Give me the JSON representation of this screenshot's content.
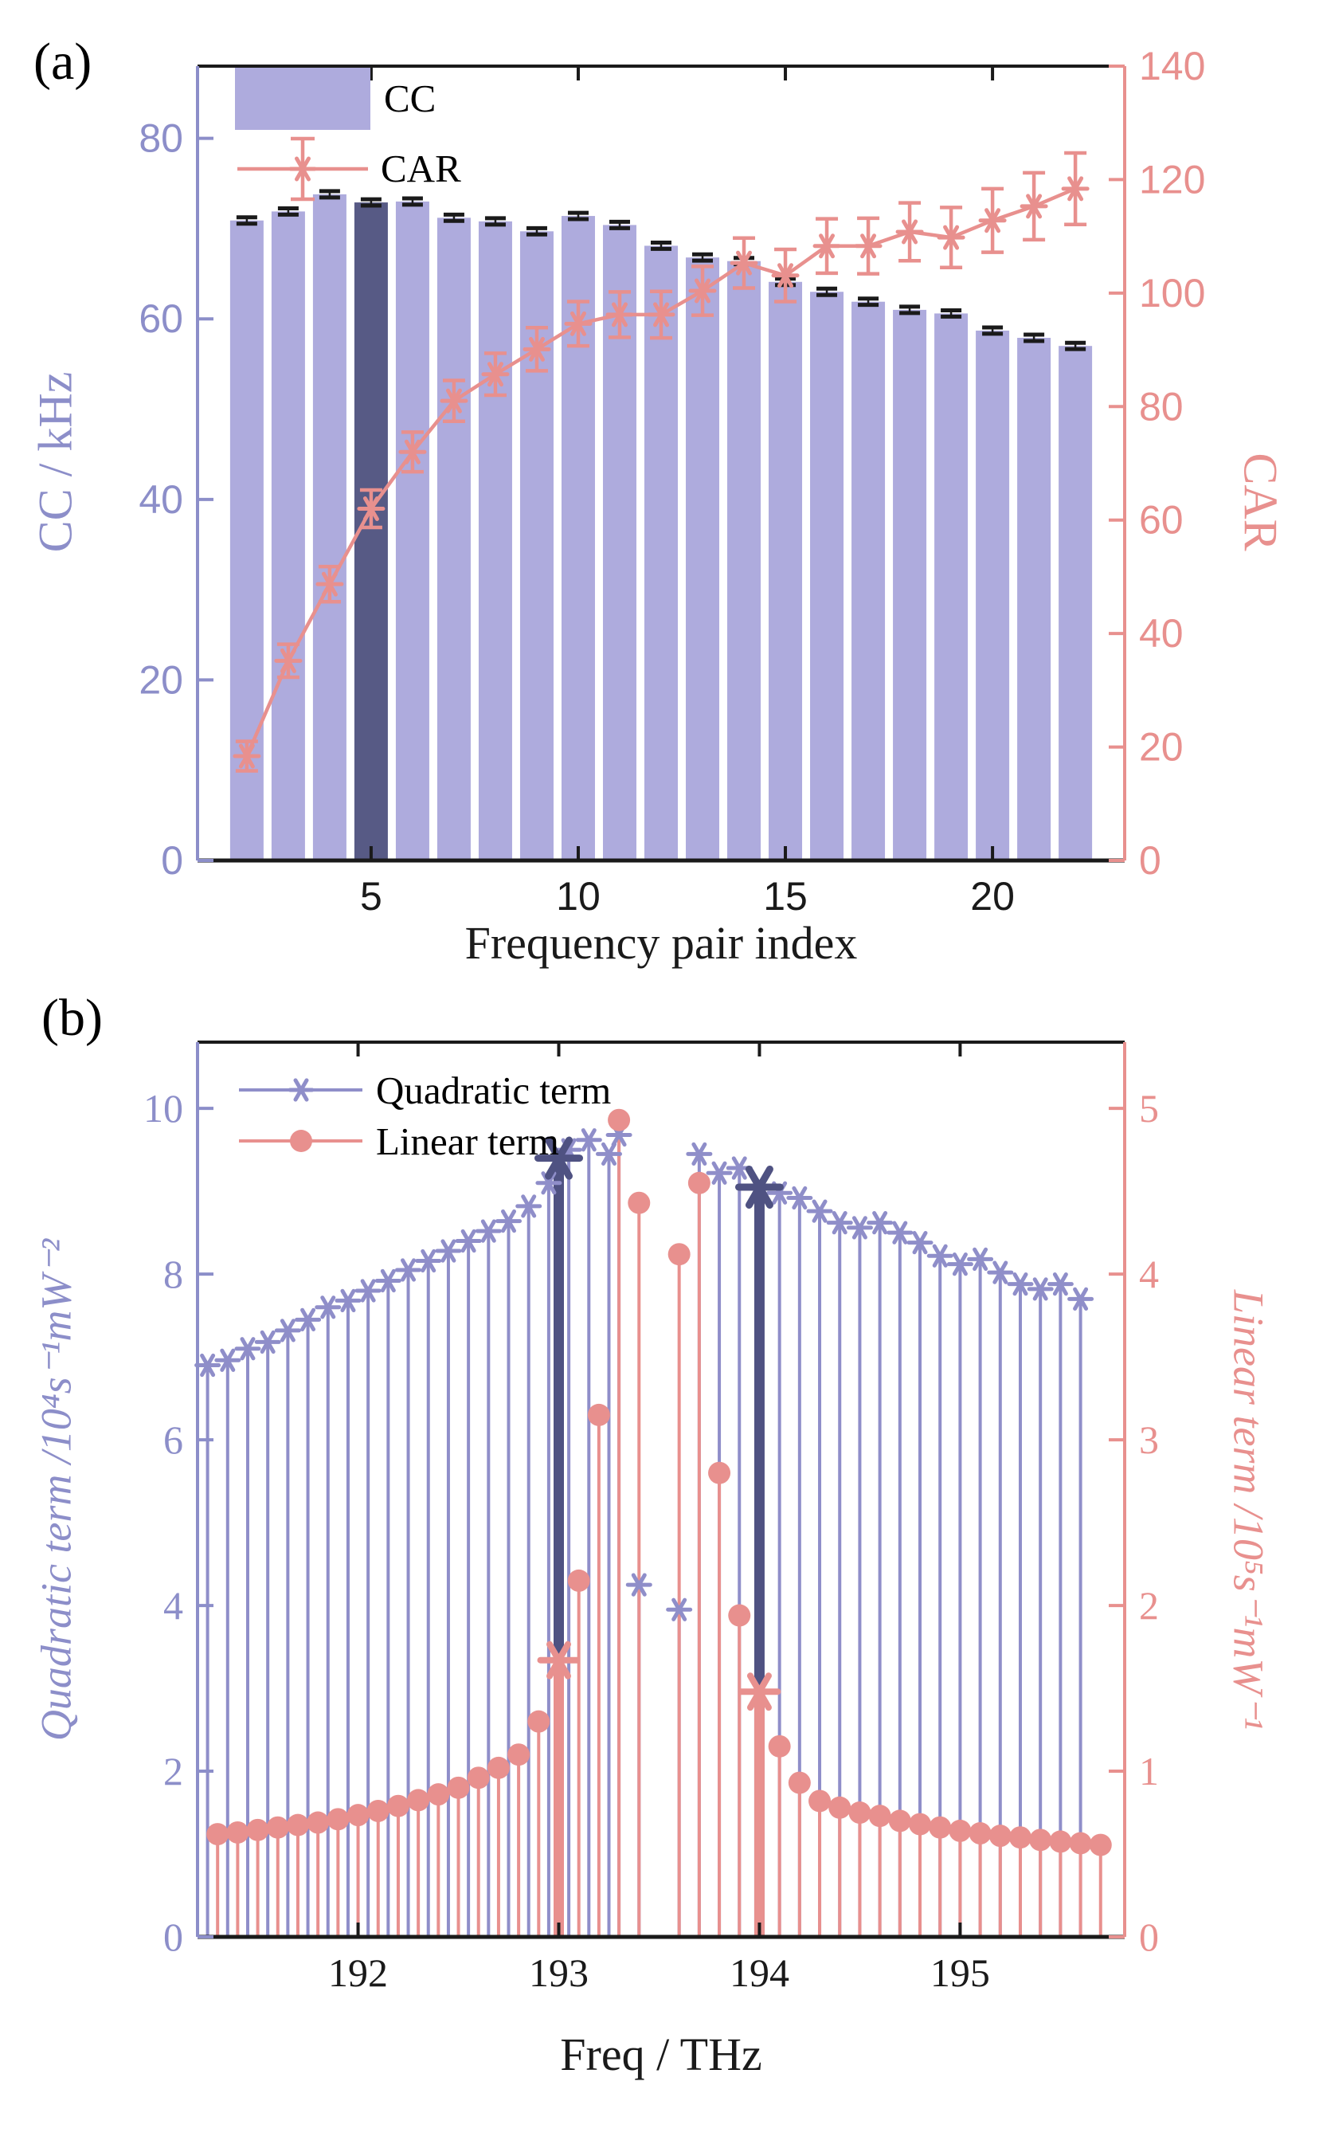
{
  "page": {
    "background": "#ffffff"
  },
  "panel_a": {
    "tag": "(a)"
  },
  "panel_b": {
    "tag": "(b)"
  },
  "colors": {
    "bar_fill": "#aeabdd",
    "bar_highlight": "#575a85",
    "stem_purple": "#8f8ec9",
    "stem_dark": "#4f5282",
    "pink": "#e8908e",
    "axis_purple": "#8c8ec9",
    "black": "#1a1a1a"
  },
  "chart_data": [
    {
      "id": "panel-a",
      "type": "bar",
      "title": "",
      "xlabel": "Frequency pair index",
      "ylabel_left": "CC / kHz",
      "ylabel_right": "CAR",
      "legend": {
        "bar_label": "CC",
        "line_label": "CAR"
      },
      "legend_position": "upper-left",
      "grid": false,
      "xlim": [
        0.81,
        23.19
      ],
      "ylim_left": [
        0,
        88
      ],
      "ylim_right": [
        0,
        140
      ],
      "xticks": [
        5,
        10,
        15,
        20
      ],
      "yticks_left": [
        0,
        20,
        40,
        60,
        80
      ],
      "yticks_right": [
        0,
        20,
        40,
        60,
        80,
        100,
        120,
        140
      ],
      "highlight_index": 5,
      "categories": [
        2,
        3,
        4,
        5,
        6,
        7,
        8,
        9,
        10,
        11,
        12,
        13,
        14,
        15,
        16,
        17,
        18,
        19,
        20,
        21,
        22
      ],
      "series": [
        {
          "name": "CC",
          "axis": "left",
          "values": [
            70.9,
            71.9,
            73.8,
            72.9,
            73.0,
            71.2,
            70.8,
            69.7,
            71.4,
            70.4,
            68.1,
            66.8,
            66.4,
            64.1,
            63.0,
            61.9,
            61.0,
            60.6,
            58.7,
            57.9,
            57.0
          ],
          "errors": [
            0.35,
            0.35,
            0.35,
            0.35,
            0.35,
            0.35,
            0.35,
            0.35,
            0.35,
            0.35,
            0.35,
            0.35,
            0.35,
            0.35,
            0.35,
            0.35,
            0.35,
            0.35,
            0.35,
            0.35,
            0.35
          ]
        },
        {
          "name": "CAR",
          "axis": "right",
          "values": [
            18.4,
            35.2,
            48.7,
            62.0,
            72.0,
            81.0,
            85.7,
            90.1,
            94.6,
            96.2,
            96.2,
            100.4,
            105.3,
            103.1,
            108.3,
            108.3,
            110.8,
            109.8,
            112.8,
            115.3,
            118.4
          ],
          "errors": [
            2.6,
            2.9,
            3.1,
            3.3,
            3.5,
            3.6,
            3.7,
            3.8,
            3.9,
            4.0,
            4.1,
            4.3,
            4.4,
            4.6,
            4.8,
            4.9,
            5.1,
            5.3,
            5.6,
            5.9,
            6.3
          ]
        }
      ]
    },
    {
      "id": "panel-b",
      "type": "stem",
      "title": "",
      "xlabel": "Freq / THz",
      "ylabel_left": "Quadratic term /10⁴s⁻¹mW⁻²",
      "ylabel_right": "Linear term /10⁵s⁻¹mW⁻¹",
      "legend": {
        "quadratic_label": "Quadratic term",
        "linear_label": "Linear term"
      },
      "legend_position": "upper-left",
      "grid": false,
      "xlim": [
        191.2,
        195.82
      ],
      "ylim_left": [
        0,
        10.8
      ],
      "ylim_right": [
        0,
        5.4
      ],
      "xticks": [
        192,
        193,
        194,
        195
      ],
      "yticks_left": [
        0,
        2,
        4,
        6,
        8,
        10
      ],
      "yticks_right": [
        0,
        1,
        2,
        3,
        4,
        5
      ],
      "series": [
        {
          "name": "Quadratic term",
          "axis": "left",
          "marker": "asterisk",
          "x": [
            191.25,
            191.35,
            191.45,
            191.55,
            191.65,
            191.75,
            191.85,
            191.95,
            192.05,
            192.15,
            192.25,
            192.35,
            192.45,
            192.55,
            192.65,
            192.75,
            192.85,
            192.95,
            193.05,
            193.15,
            193.25,
            193.3,
            193.4,
            193.6,
            193.7,
            193.8,
            193.9,
            194.1,
            194.2,
            194.3,
            194.4,
            194.5,
            194.6,
            194.7,
            194.8,
            194.9,
            195.0,
            195.1,
            195.2,
            195.3,
            195.4,
            195.5,
            195.6
          ],
          "y": [
            6.9,
            6.96,
            7.1,
            7.18,
            7.32,
            7.45,
            7.6,
            7.68,
            7.8,
            7.92,
            8.05,
            8.16,
            8.28,
            8.4,
            8.52,
            8.64,
            8.82,
            9.1,
            9.5,
            9.62,
            9.45,
            9.68,
            4.25,
            3.95,
            9.45,
            9.22,
            9.28,
            8.98,
            8.92,
            8.76,
            8.62,
            8.56,
            8.62,
            8.5,
            8.38,
            8.22,
            8.12,
            8.18,
            8.02,
            7.88,
            7.82,
            7.88,
            7.7
          ]
        },
        {
          "name": "Quadratic term (highlighted pair)",
          "axis": "left",
          "marker": "asterisk-big",
          "x": [
            193.0,
            194.0
          ],
          "y": [
            9.4,
            9.05
          ]
        },
        {
          "name": "Linear term",
          "axis": "right",
          "marker": "circle",
          "x": [
            191.3,
            191.4,
            191.5,
            191.6,
            191.7,
            191.8,
            191.9,
            192.0,
            192.1,
            192.2,
            192.3,
            192.4,
            192.5,
            192.6,
            192.7,
            192.8,
            192.9,
            193.1,
            193.2,
            193.3,
            193.4,
            193.6,
            193.7,
            193.8,
            193.9,
            194.1,
            194.2,
            194.3,
            194.4,
            194.5,
            194.6,
            194.7,
            194.8,
            194.9,
            195.0,
            195.1,
            195.2,
            195.3,
            195.4,
            195.5,
            195.6,
            195.7
          ],
          "y": [
            0.62,
            0.63,
            0.645,
            0.66,
            0.675,
            0.69,
            0.71,
            0.735,
            0.76,
            0.79,
            0.825,
            0.86,
            0.9,
            0.96,
            1.02,
            1.1,
            1.3,
            2.15,
            3.15,
            4.93,
            4.43,
            4.12,
            4.55,
            2.8,
            1.94,
            1.15,
            0.93,
            0.82,
            0.78,
            0.75,
            0.73,
            0.7,
            0.68,
            0.66,
            0.64,
            0.625,
            0.61,
            0.6,
            0.585,
            0.575,
            0.565,
            0.555
          ]
        },
        {
          "name": "Linear term (highlighted pair)",
          "axis": "right",
          "marker": "asterisk-big-pink",
          "x": [
            193.0,
            194.0
          ],
          "y": [
            1.67,
            1.48
          ]
        }
      ]
    }
  ]
}
